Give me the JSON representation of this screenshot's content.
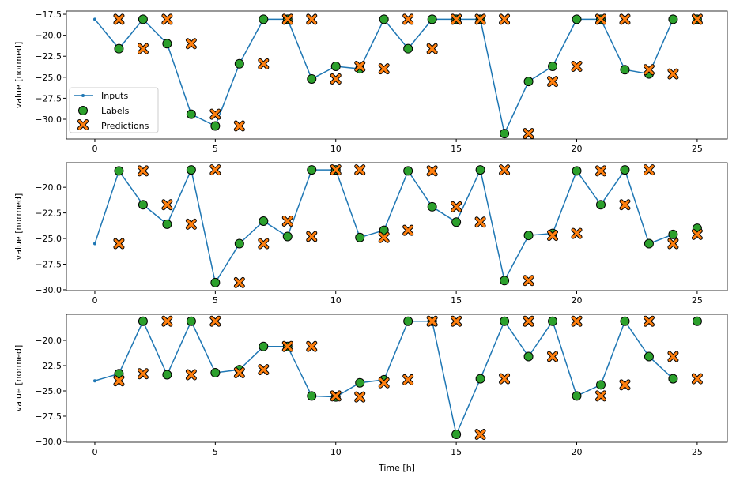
{
  "chart_data": [
    {
      "type": "line",
      "ylabel": "value [normed]",
      "xlabel": "",
      "xlim": [
        -1.18,
        26.25
      ],
      "ylim": [
        -32.35,
        -17.12
      ],
      "xticks": [
        0,
        5,
        10,
        15,
        20,
        25
      ],
      "yticks": [
        -17.5,
        -20.0,
        -22.5,
        -25.0,
        -27.5,
        -30.0
      ],
      "ytick_labels": [
        "−17.5",
        "−20.0",
        "−22.5",
        "−25.0",
        "−27.5",
        "−30.0"
      ],
      "legend": {
        "placement": "lower-left",
        "entries": [
          "Inputs",
          "Labels",
          "Predictions"
        ]
      },
      "inputs_x": [
        0,
        1,
        2,
        3,
        4,
        5,
        6,
        7,
        8,
        9,
        10,
        11,
        12,
        13,
        14,
        15,
        16,
        17,
        18,
        19,
        20,
        21,
        22,
        23,
        24
      ],
      "inputs": [
        -18.1,
        -21.6,
        -18.1,
        -21.0,
        -29.4,
        -30.8,
        -23.4,
        -18.1,
        -18.1,
        -25.2,
        -23.7,
        -24.0,
        -18.1,
        -21.6,
        -18.1,
        -18.1,
        -18.1,
        -31.7,
        -25.5,
        -23.7,
        -18.1,
        -18.1,
        -24.1,
        -24.6,
        -18.1
      ],
      "labels_x": [
        1,
        2,
        3,
        4,
        5,
        6,
        7,
        8,
        9,
        10,
        11,
        12,
        13,
        14,
        15,
        16,
        17,
        18,
        19,
        20,
        21,
        22,
        23,
        24,
        25
      ],
      "labels": [
        -21.6,
        -18.1,
        -21.0,
        -29.4,
        -30.8,
        -23.4,
        -18.1,
        -18.1,
        -25.2,
        -23.7,
        -24.0,
        -18.1,
        -21.6,
        -18.1,
        -18.1,
        -18.1,
        -31.7,
        -25.5,
        -23.7,
        -18.1,
        -18.1,
        -24.1,
        -24.6,
        -18.1,
        -18.1
      ],
      "predictions": [
        -18.1,
        -21.6,
        -18.1,
        -21.0,
        -29.4,
        -30.8,
        -23.4,
        -18.1,
        -18.1,
        -25.2,
        -23.7,
        -24.0,
        -18.1,
        -21.6,
        -18.1,
        -18.1,
        -18.1,
        -31.7,
        -25.5,
        -23.7,
        -18.1,
        -18.1,
        -24.1,
        -24.6,
        -18.1
      ]
    },
    {
      "type": "line",
      "ylabel": "value [normed]",
      "xlabel": "",
      "xlim": [
        -1.18,
        26.25
      ],
      "ylim": [
        -30.08,
        -17.6
      ],
      "xticks": [
        0,
        5,
        10,
        15,
        20,
        25
      ],
      "yticks": [
        -20.0,
        -22.5,
        -25.0,
        -27.5,
        -30.0
      ],
      "ytick_labels": [
        "−20.0",
        "−22.5",
        "−25.0",
        "−27.5",
        "−30.0"
      ],
      "inputs_x": [
        0,
        1,
        2,
        3,
        4,
        5,
        6,
        7,
        8,
        9,
        10,
        11,
        12,
        13,
        14,
        15,
        16,
        17,
        18,
        19,
        20,
        21,
        22,
        23,
        24
      ],
      "inputs": [
        -25.5,
        -18.4,
        -21.7,
        -23.6,
        -18.3,
        -29.3,
        -25.5,
        -23.3,
        -24.8,
        -18.3,
        -18.3,
        -24.9,
        -24.2,
        -18.4,
        -21.9,
        -23.4,
        -18.3,
        -29.1,
        -24.7,
        -24.5,
        -18.4,
        -21.7,
        -18.3,
        -25.5,
        -24.6
      ],
      "labels_x": [
        1,
        2,
        3,
        4,
        5,
        6,
        7,
        8,
        9,
        10,
        11,
        12,
        13,
        14,
        15,
        16,
        17,
        18,
        19,
        20,
        21,
        22,
        23,
        24,
        25
      ],
      "labels": [
        -18.4,
        -21.7,
        -23.6,
        -18.3,
        -29.3,
        -25.5,
        -23.3,
        -24.8,
        -18.3,
        -18.3,
        -24.9,
        -24.2,
        -18.4,
        -21.9,
        -23.4,
        -18.3,
        -29.1,
        -24.7,
        -24.5,
        -18.4,
        -21.7,
        -18.3,
        -25.5,
        -24.6,
        -24.0
      ],
      "predictions": [
        -25.5,
        -18.4,
        -21.7,
        -23.6,
        -18.3,
        -29.3,
        -25.5,
        -23.3,
        -24.8,
        -18.3,
        -18.3,
        -24.9,
        -24.2,
        -18.4,
        -21.9,
        -23.4,
        -18.3,
        -29.1,
        -24.7,
        -24.5,
        -18.4,
        -21.7,
        -18.3,
        -25.5,
        -24.6
      ]
    },
    {
      "type": "line",
      "ylabel": "value [normed]",
      "xlabel": "Time [h]",
      "xlim": [
        -1.18,
        26.25
      ],
      "ylim": [
        -30.08,
        -17.42
      ],
      "xticks": [
        0,
        5,
        10,
        15,
        20,
        25
      ],
      "yticks": [
        -20.0,
        -22.5,
        -25.0,
        -27.5,
        -30.0
      ],
      "ytick_labels": [
        "−20.0",
        "−22.5",
        "−25.0",
        "−27.5",
        "−30.0"
      ],
      "inputs_x": [
        0,
        1,
        2,
        3,
        4,
        5,
        6,
        7,
        8,
        9,
        10,
        11,
        12,
        13,
        14,
        15,
        16,
        17,
        18,
        19,
        20,
        21,
        22,
        23,
        24
      ],
      "inputs": [
        -24.0,
        -23.3,
        -18.1,
        -23.4,
        -18.1,
        -23.2,
        -22.9,
        -20.6,
        -20.6,
        -25.5,
        -25.6,
        -24.2,
        -23.9,
        -18.1,
        -18.1,
        -29.3,
        -23.8,
        -18.1,
        -21.6,
        -18.1,
        -25.5,
        -24.4,
        -18.1,
        -21.6,
        -23.8
      ],
      "labels_x": [
        1,
        2,
        3,
        4,
        5,
        6,
        7,
        8,
        9,
        10,
        11,
        12,
        13,
        14,
        15,
        16,
        17,
        18,
        19,
        20,
        21,
        22,
        23,
        24,
        25
      ],
      "labels": [
        -23.3,
        -18.1,
        -23.4,
        -18.1,
        -23.2,
        -22.9,
        -20.6,
        -20.6,
        -25.5,
        -25.6,
        -24.2,
        -23.9,
        -18.1,
        -18.1,
        -29.3,
        -23.8,
        -18.1,
        -21.6,
        -18.1,
        -25.5,
        -24.4,
        -18.1,
        -21.6,
        -23.8,
        -18.1
      ],
      "predictions": [
        -24.0,
        -23.3,
        -18.1,
        -23.4,
        -18.1,
        -23.2,
        -22.9,
        -20.6,
        -20.6,
        -25.5,
        -25.6,
        -24.2,
        -23.9,
        -18.1,
        -18.1,
        -29.3,
        -23.8,
        -18.1,
        -21.6,
        -18.1,
        -25.5,
        -24.4,
        -18.1,
        -21.6,
        -23.8
      ]
    }
  ],
  "colors": {
    "inputs": "#1f77b4",
    "labels": "#2ca02c",
    "predictions": "#ff7f0e"
  }
}
